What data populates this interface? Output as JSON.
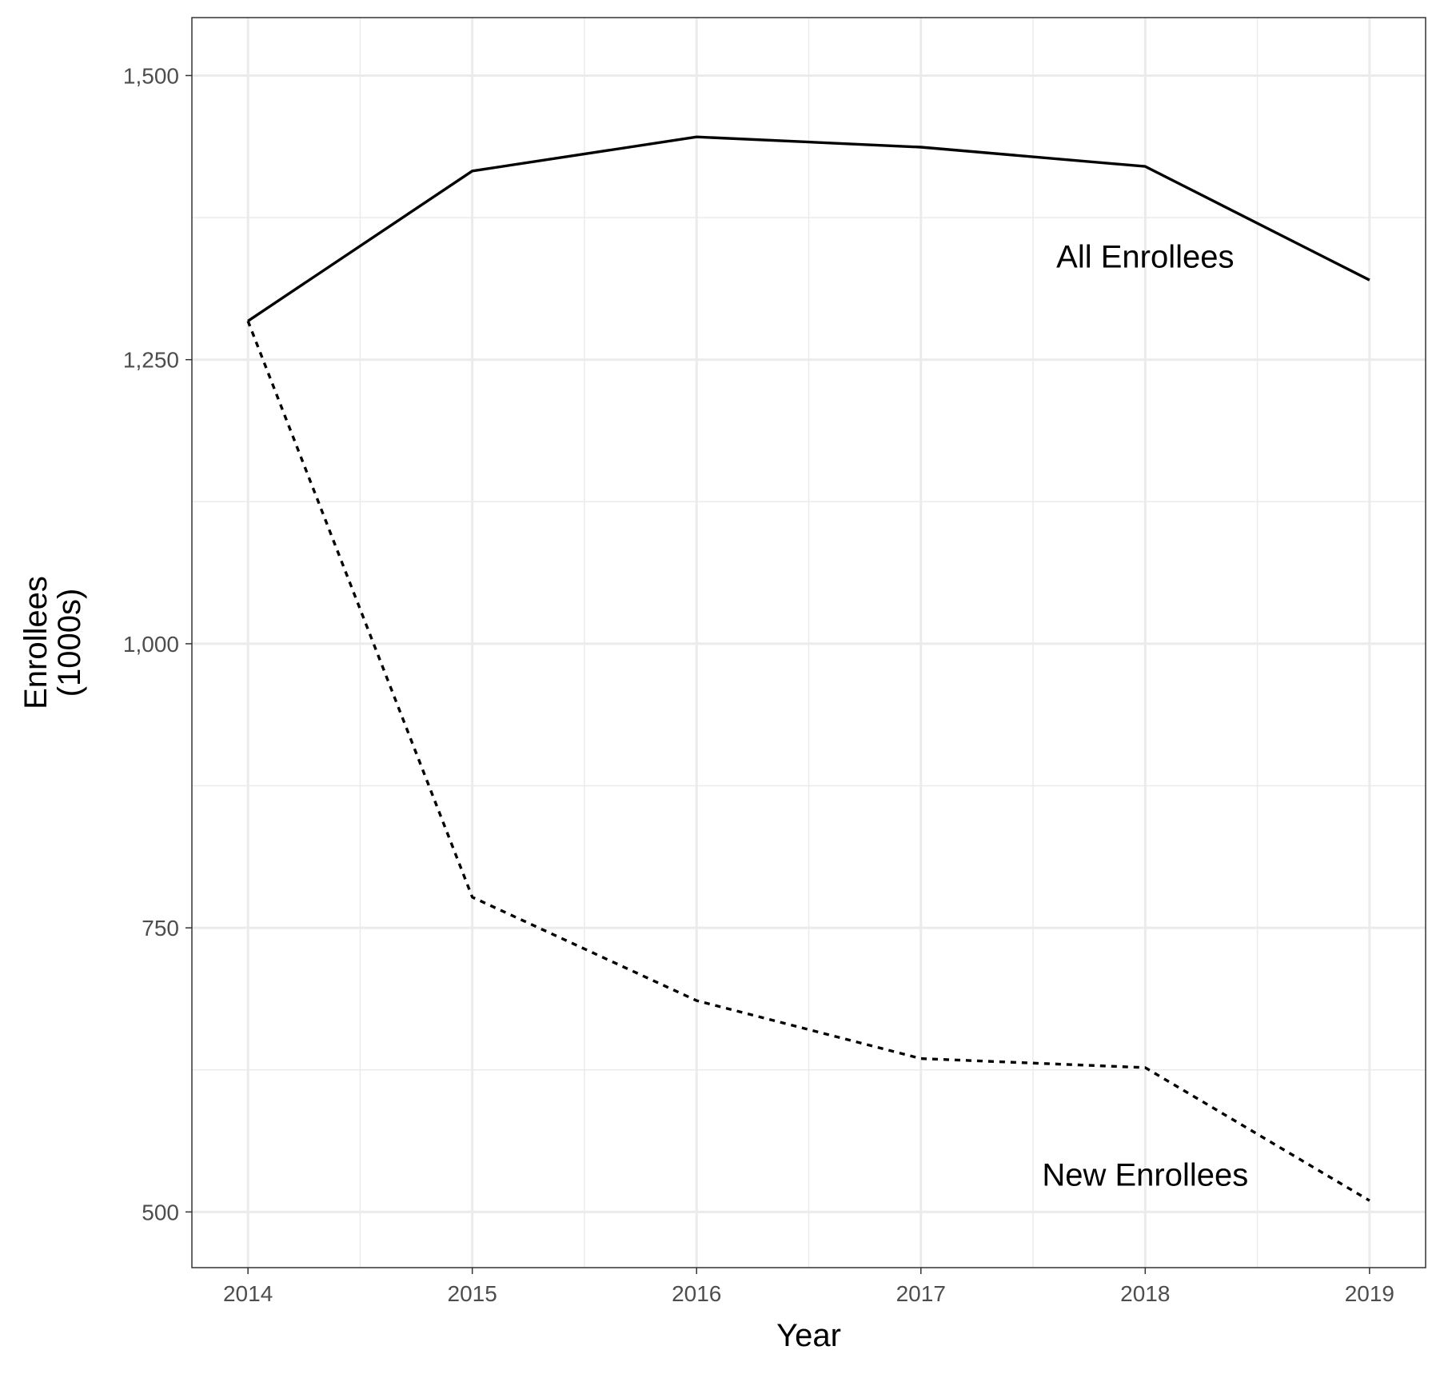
{
  "chart_data": {
    "type": "line",
    "title": "",
    "xlabel": "Year",
    "ylabel": [
      "Enrollees",
      "(1000s)"
    ],
    "x": [
      2014,
      2015,
      2016,
      2017,
      2018,
      2019
    ],
    "xlim": [
      2013.75,
      2019.25
    ],
    "ylim": [
      451,
      1551
    ],
    "x_ticks": [
      2014,
      2015,
      2016,
      2017,
      2018,
      2019
    ],
    "x_tick_labels": [
      "2014",
      "2015",
      "2016",
      "2017",
      "2018",
      "2019"
    ],
    "y_ticks": [
      500,
      750,
      1000,
      1250,
      1500
    ],
    "y_tick_labels": [
      "500",
      "750",
      "1,000",
      "1,250",
      "1,500"
    ],
    "y_minor_ticks": [
      625,
      875,
      1125,
      1375
    ],
    "x_minor_ticks": [
      2014.5,
      2015.5,
      2016.5,
      2017.5,
      2018.5
    ],
    "grid": true,
    "legend": "none",
    "series": [
      {
        "name": "All Enrollees",
        "style": "solid",
        "color": "#000000",
        "values": [
          1284,
          1416,
          1446,
          1437,
          1420,
          1320
        ],
        "label_anchor": {
          "x": 2018,
          "y": 1331
        }
      },
      {
        "name": "New Enrollees",
        "style": "dotted",
        "color": "#000000",
        "values": [
          1284,
          777,
          686,
          635,
          627,
          510
        ],
        "label_anchor": {
          "x": 2018,
          "y": 523
        }
      }
    ]
  }
}
